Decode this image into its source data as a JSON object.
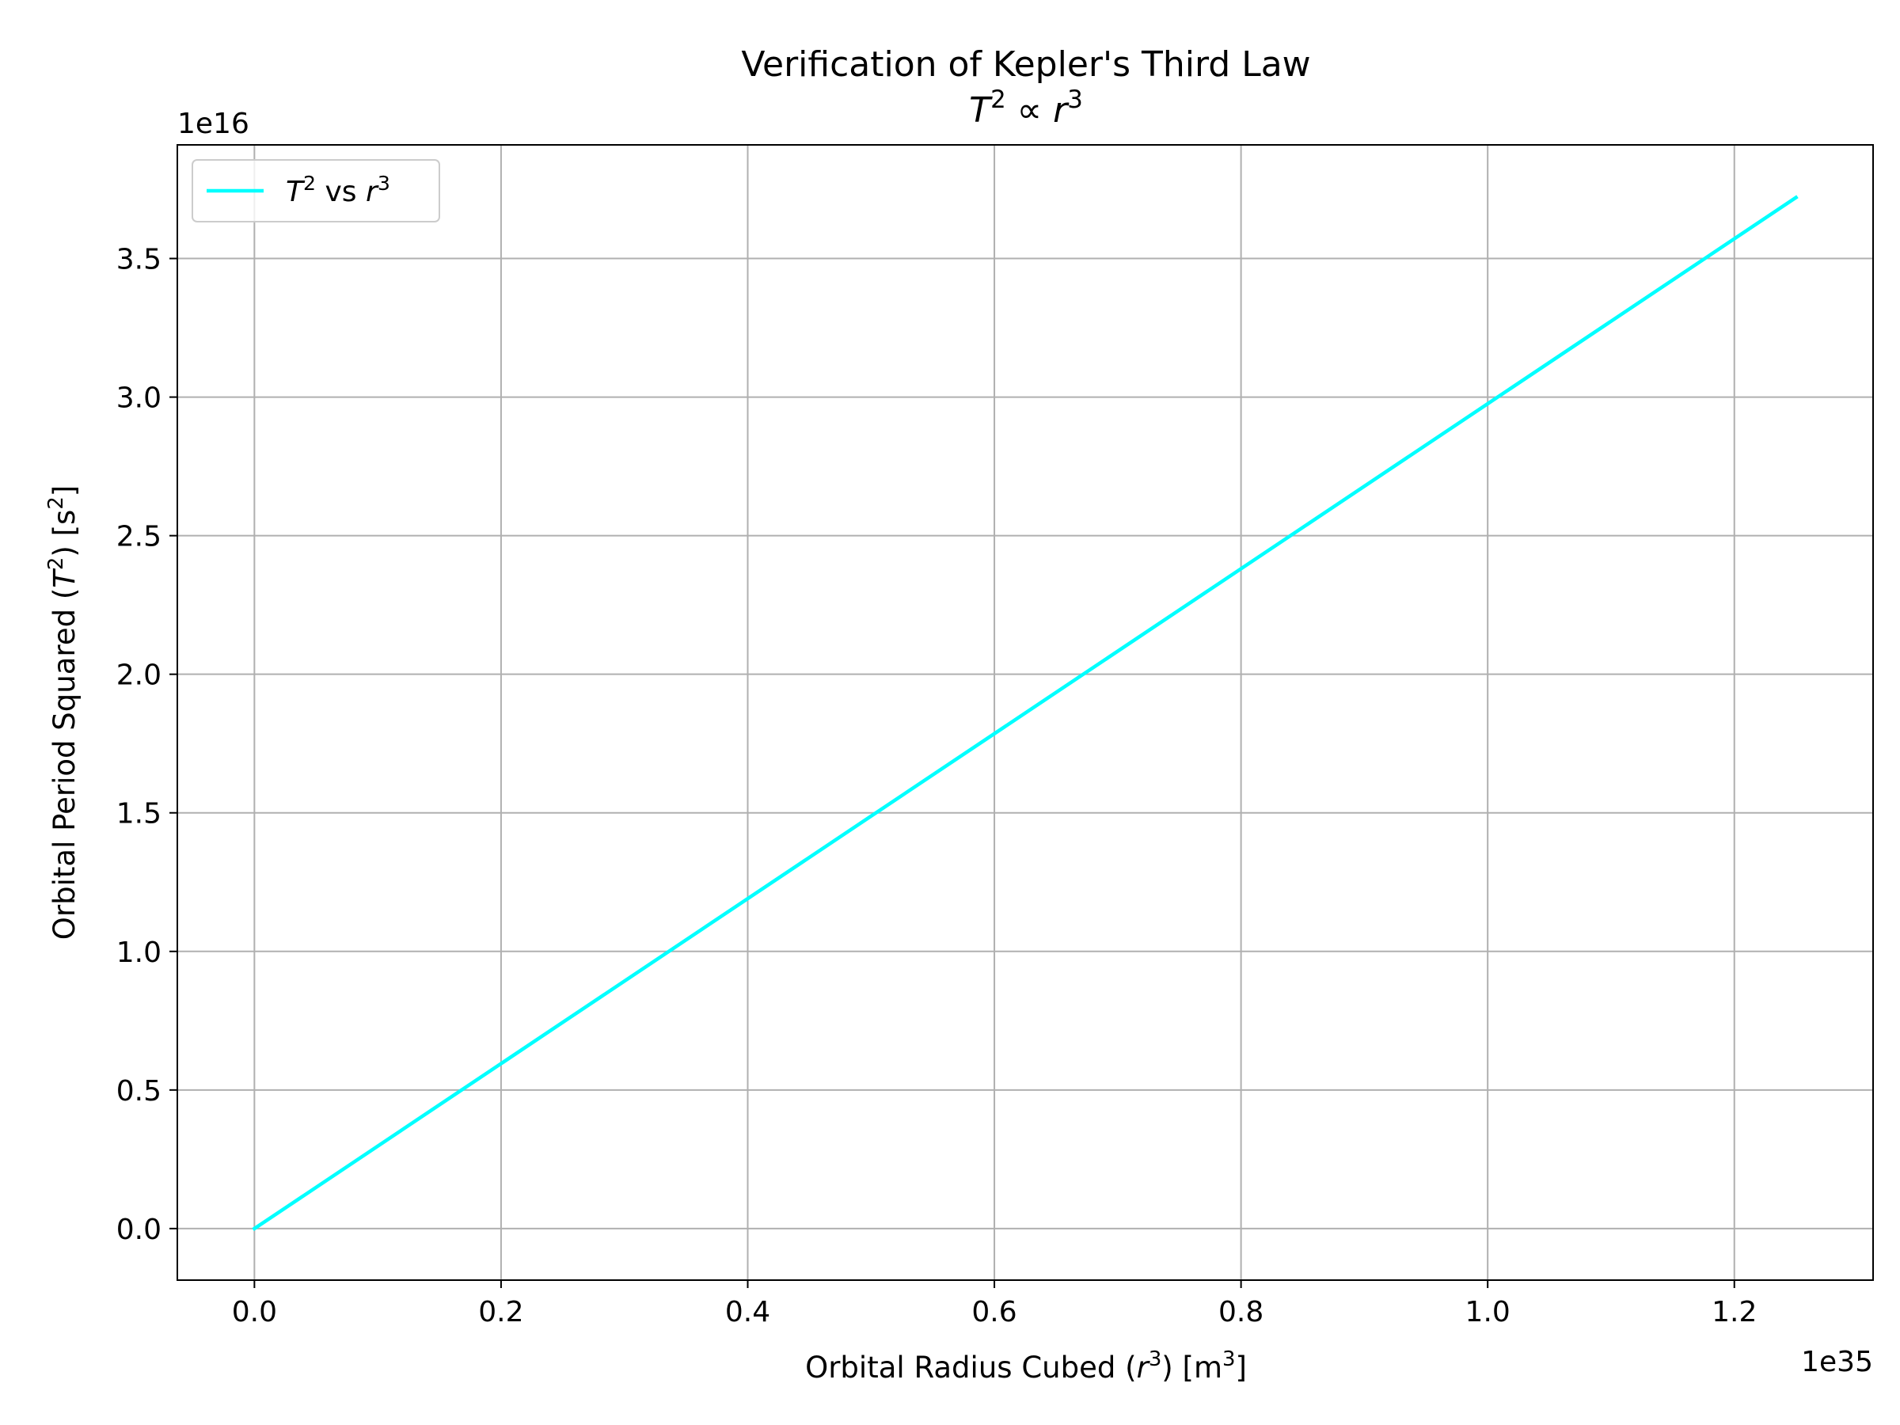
{
  "chart_data": {
    "type": "line",
    "title": "Verification of Kepler's Third Law",
    "subtitle": "T² ∝ r³",
    "xlabel": "Orbital Radius Cubed (r³) [m³]",
    "ylabel": "Orbital Period Squared (T²) [s²]",
    "x_offset_text": "1e35",
    "y_offset_text": "1e16",
    "xlim": [
      -0.0625,
      1.3125
    ],
    "ylim": [
      -0.186,
      3.91
    ],
    "x_ticks": [
      0.0,
      0.2,
      0.4,
      0.6,
      0.8,
      1.0,
      1.2
    ],
    "x_tick_labels": [
      "0.0",
      "0.2",
      "0.4",
      "0.6",
      "0.8",
      "1.0",
      "1.2"
    ],
    "y_ticks": [
      0.0,
      0.5,
      1.0,
      1.5,
      2.0,
      2.5,
      3.0,
      3.5
    ],
    "y_tick_labels": [
      "0.0",
      "0.5",
      "1.0",
      "1.5",
      "2.0",
      "2.5",
      "3.0",
      "3.5"
    ],
    "grid": true,
    "legend_position": "upper-left",
    "series": [
      {
        "name": "T² vs r³",
        "color": "#00ffff",
        "x": [
          0.0,
          0.25,
          0.5,
          0.75,
          1.0,
          1.25
        ],
        "y": [
          0.0,
          0.744,
          1.488,
          2.232,
          2.976,
          3.72
        ]
      }
    ]
  }
}
